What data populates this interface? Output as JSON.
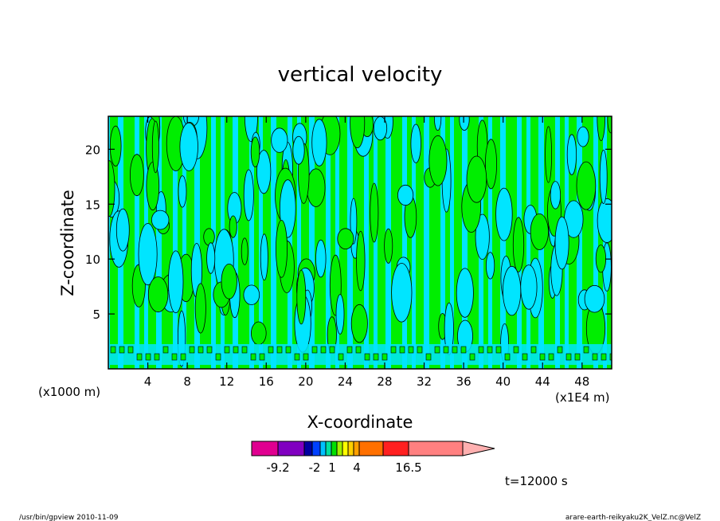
{
  "chart_data": {
    "type": "heatmap",
    "title": "vertical velocity",
    "xlabel": "X-coordinate",
    "ylabel": "Z-coordinate",
    "x_unit_left": "(x1000 m)",
    "x_unit_right": "(x1E4 m)",
    "xlim": [
      0,
      51
    ],
    "ylim": [
      0,
      23
    ],
    "x_ticks": [
      4,
      8,
      12,
      16,
      20,
      24,
      28,
      32,
      36,
      40,
      44,
      48
    ],
    "y_ticks": [
      5,
      10,
      15,
      20
    ],
    "x_tick_labels": [
      "4",
      "8",
      "12",
      "16",
      "20",
      "24",
      "28",
      "32",
      "36",
      "40",
      "44",
      "48"
    ],
    "y_tick_labels": [
      "5",
      "10",
      "15",
      "20"
    ],
    "field_colors": {
      "negative": "#00e5ff",
      "positive": "#00ee00"
    },
    "colorbar": {
      "colors": [
        "#e00090",
        "#8000c0",
        "#0000a0",
        "#0040ff",
        "#00c0ff",
        "#00e0a0",
        "#00e000",
        "#a0f000",
        "#ffff00",
        "#ffd000",
        "#ffa000",
        "#ff7000",
        "#ff2020",
        "#ff8080",
        "#ffb0b0"
      ],
      "labels": [
        "-9.2",
        "-2",
        "1",
        "4",
        "16.5"
      ]
    },
    "time_label": "t=12000 s"
  },
  "footer": {
    "left": "/usr/bin/gpview  2010-11-09",
    "right": "arare-earth-reikyaku2K_VelZ.nc@VelZ"
  }
}
